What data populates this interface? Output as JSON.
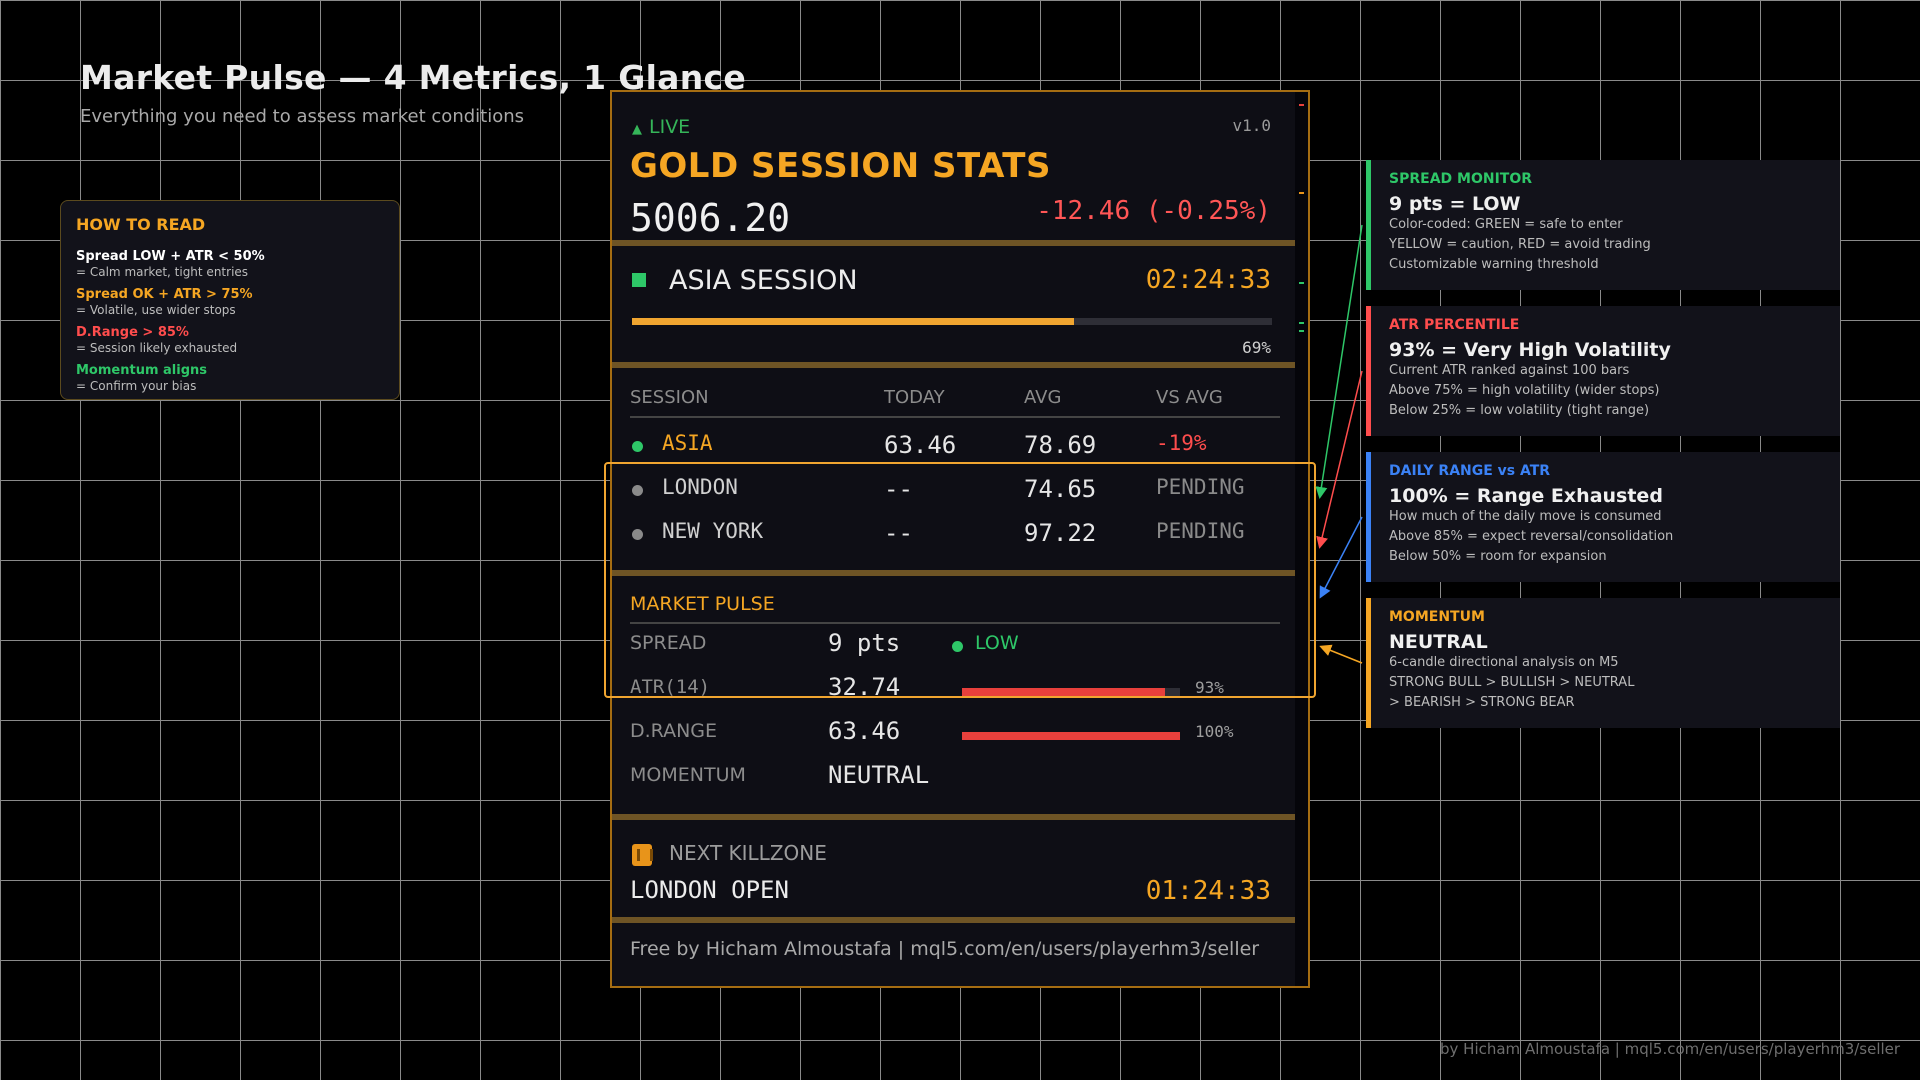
{
  "header": {
    "title": "Market Pulse — 4 Metrics, 1 Glance",
    "subtitle": "Everything you need to assess market conditions"
  },
  "how_to_read": {
    "title": "HOW TO READ",
    "rules": [
      {
        "rule": "Spread LOW + ATR < 50%",
        "desc": "= Calm market, tight entries",
        "color": "#ffffff"
      },
      {
        "rule": "Spread OK + ATR > 75%",
        "desc": "= Volatile, use wider stops",
        "color": "#f5a623"
      },
      {
        "rule": "D.Range > 85%",
        "desc": "= Session likely exhausted",
        "color": "#ff4d4d"
      },
      {
        "rule": "Momentum aligns",
        "desc": "= Confirm your bias",
        "color": "#2ec768"
      }
    ]
  },
  "panel": {
    "live_label": "LIVE",
    "version": "v1.0",
    "title": "GOLD SESSION STATS",
    "price": "5006.20",
    "change": "-12.46 (-0.25%)",
    "session": {
      "name": "ASIA SESSION",
      "timer": "02:24:33",
      "progress_pct": 69,
      "progress_label": "69%"
    },
    "table": {
      "headers": [
        "SESSION",
        "TODAY",
        "AVG",
        "VS AVG"
      ],
      "rows": [
        {
          "session": "ASIA",
          "today": "63.46",
          "avg": "78.69",
          "vs": "-19%",
          "session_color": "#f5a623",
          "vs_color": "#ff4d4d",
          "dot_color": "#2ec768"
        },
        {
          "session": "LONDON",
          "today": "--",
          "avg": "74.65",
          "vs": "PENDING",
          "session_color": "#d0d0d0",
          "vs_color": "#8a8a8a",
          "dot_color": "#8a8a8a"
        },
        {
          "session": "NEW YORK",
          "today": "--",
          "avg": "97.22",
          "vs": "PENDING",
          "session_color": "#d0d0d0",
          "vs_color": "#8a8a8a",
          "dot_color": "#8a8a8a"
        }
      ]
    },
    "market_pulse": {
      "title": "MARKET PULSE",
      "spread_label": "SPREAD",
      "spread_value": "9 pts",
      "spread_state": "LOW",
      "atr_label": "ATR(14)",
      "atr_value": "32.74",
      "atr_pct": 93,
      "atr_pct_label": "93%",
      "drange_label": "D.RANGE",
      "drange_value": "63.46",
      "drange_pct": 100,
      "drange_pct_label": "100%",
      "momentum_label": "MOMENTUM",
      "momentum_value": "NEUTRAL"
    },
    "killzone": {
      "label": "NEXT KILLZONE",
      "name": "LONDON OPEN",
      "timer": "01:24:33"
    },
    "footer": "Free by Hicham Almoustafa | mql5.com/en/users/playerhm3/seller"
  },
  "cards": [
    {
      "title": "SPREAD MONITOR",
      "main": "9 pts = LOW",
      "lines": [
        "Color-coded: GREEN = safe to enter",
        "YELLOW = caution, RED = avoid trading",
        "Customizable warning threshold"
      ],
      "color": "#2ec768"
    },
    {
      "title": "ATR PERCENTILE",
      "main": "93% = Very High Volatility",
      "lines": [
        "Current ATR ranked against 100 bars",
        "Above 75% = high volatility (wider stops)",
        "Below 25% = low volatility (tight range)"
      ],
      "color": "#ff4d4d"
    },
    {
      "title": "DAILY RANGE vs ATR",
      "main": "100% = Range Exhausted",
      "lines": [
        "How much of the daily move is consumed",
        "Above 85% = expect reversal/consolidation",
        "Below 50% = room for expansion"
      ],
      "color": "#3b82f6"
    },
    {
      "title": "MOMENTUM",
      "main": "NEUTRAL",
      "lines": [
        "6-candle directional analysis on M5",
        "STRONG BULL > BULLISH > NEUTRAL",
        "> BEARISH > STRONG BEAR"
      ],
      "color": "#f5a623"
    }
  ],
  "credit": "by Hicham Almoustafa  |  mql5.com/en/users/playerhm3/seller"
}
